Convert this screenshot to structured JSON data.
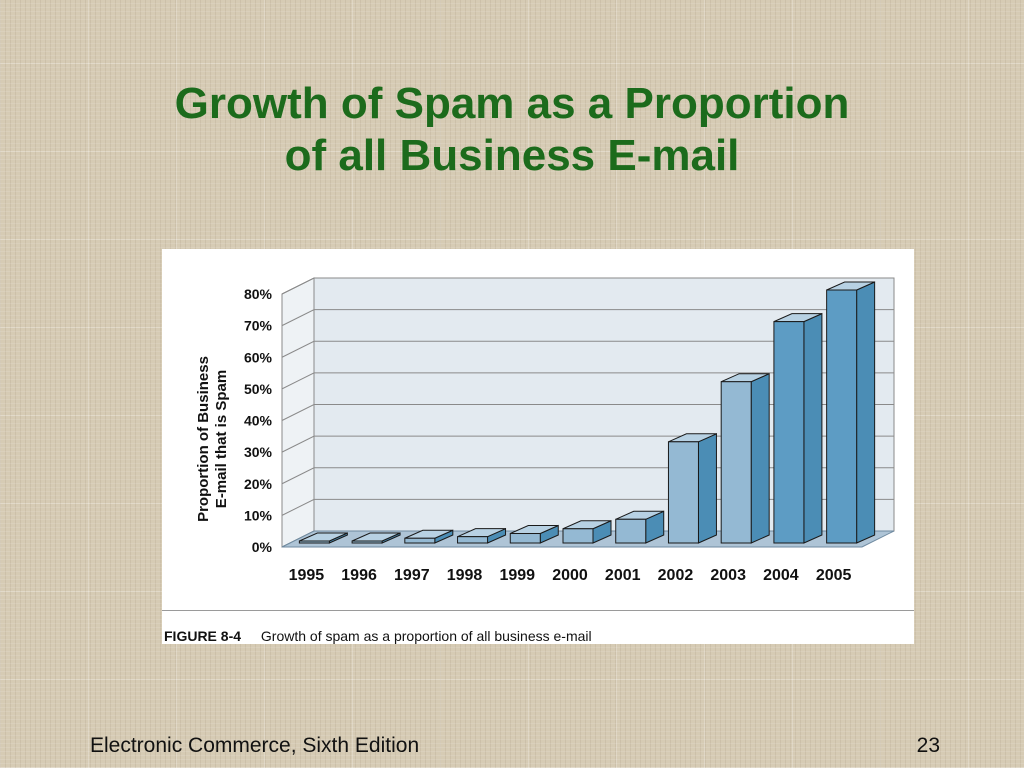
{
  "slide": {
    "title_line1": "Growth of Spam as a Proportion",
    "title_line2": "of all Business E-mail",
    "footer_left": "Electronic Commerce, Sixth Edition",
    "page_number": "23"
  },
  "figure": {
    "label": "FIGURE 8-4",
    "caption": "Growth of spam as a proportion of all business e-mail"
  },
  "chart_data": {
    "type": "bar",
    "style": "3d",
    "categories": [
      "1995",
      "1996",
      "1997",
      "1998",
      "1999",
      "2000",
      "2001",
      "2002",
      "2003",
      "2004",
      "2005"
    ],
    "values": [
      0.5,
      0.5,
      1.5,
      2,
      3,
      4.5,
      7.5,
      32,
      51,
      70,
      80
    ],
    "unit": "%",
    "ylabel_line1": "Proportion of Business",
    "ylabel_line2": "E-mail that is Spam",
    "yticks": [
      "0%",
      "10%",
      "20%",
      "30%",
      "40%",
      "50%",
      "60%",
      "70%",
      "80%"
    ],
    "ylim": [
      0,
      80
    ],
    "grid": true,
    "legend": "none",
    "colors": {
      "bar_front": "#94b9d3",
      "bar_side": "#4b8db5",
      "bar_top": "#b7d1e3",
      "bar_front_highlight": "#5d9cc4",
      "bar_edge": "#1a1a1a",
      "wall": "#e3eaf0",
      "floor": "#aec4d6"
    }
  }
}
